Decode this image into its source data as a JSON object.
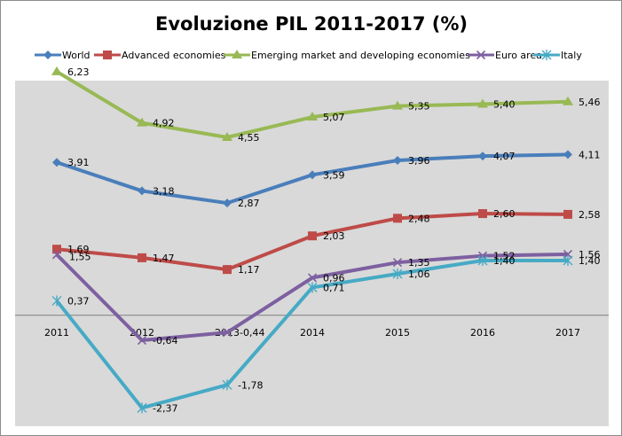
{
  "chart_data": {
    "type": "line",
    "title": "Evoluzione PIL 2011-2017 (%)",
    "xlabel": "",
    "ylabel": "",
    "categories": [
      "2011",
      "2012",
      "2013",
      "2014",
      "2015",
      "2016",
      "2017"
    ],
    "ylim": [
      -2.6,
      6.6
    ],
    "grid": false,
    "legend_position": "top",
    "series": [
      {
        "name": "World",
        "color": "#4a7ebb",
        "marker": "diamond",
        "values": [
          3.91,
          3.18,
          2.87,
          3.59,
          3.96,
          4.07,
          4.11
        ],
        "labels": [
          "3,91",
          "3,18",
          "2,87",
          "3,59",
          "3,96",
          "4,07",
          "4,11"
        ]
      },
      {
        "name": "Advanced economies",
        "color": "#be4b48",
        "marker": "square",
        "values": [
          1.69,
          1.47,
          1.17,
          2.03,
          2.48,
          2.6,
          2.58
        ],
        "labels": [
          "1,69",
          "1,47",
          "1,17",
          "2,03",
          "2,48",
          "2,60",
          "2,58"
        ]
      },
      {
        "name": "Emerging market and developing economies",
        "color": "#98b954",
        "marker": "triangle",
        "values": [
          6.23,
          4.92,
          4.55,
          5.07,
          5.35,
          5.4,
          5.46
        ],
        "labels": [
          "6,23",
          "4,92",
          "4,55",
          "5,07",
          "5,35",
          "5,40",
          "5,46"
        ]
      },
      {
        "name": "Euro area",
        "color": "#7d60a0",
        "marker": "x",
        "values": [
          1.55,
          -0.64,
          -0.44,
          0.96,
          1.35,
          1.52,
          1.56
        ],
        "labels": [
          "1,55",
          "-0,64",
          "-0,44",
          "0,96",
          "1,35",
          "1,52",
          "1,56"
        ]
      },
      {
        "name": "Italy",
        "color": "#46aac5",
        "marker": "star",
        "values": [
          0.37,
          -2.37,
          -1.78,
          0.71,
          1.06,
          1.4,
          1.4
        ],
        "labels": [
          "0,37",
          "-2,37",
          "-1,78",
          "0,71",
          "1,06",
          "1,40",
          "1,40"
        ]
      }
    ]
  }
}
